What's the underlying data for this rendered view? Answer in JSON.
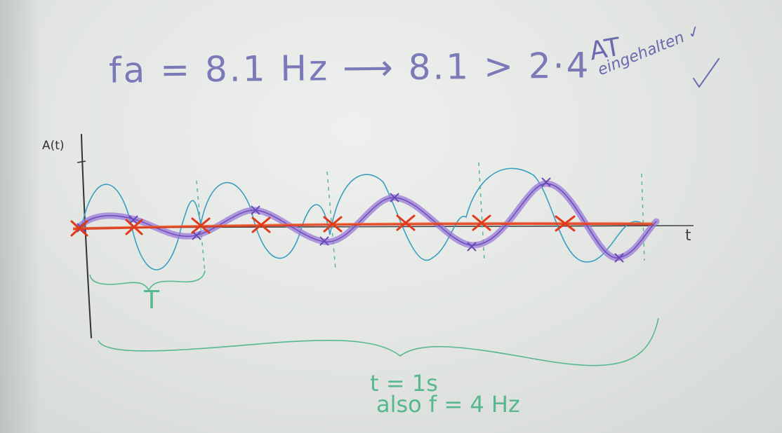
{
  "formula": "fa = 8.1 Hz ⟶ 8.1 > 2·4",
  "note_top": "AT",
  "note_bottom": "eingehalten ✓",
  "y_axis_label": "A(t)",
  "x_axis_label": "t",
  "period_label": "T",
  "duration_label": "t = 1s",
  "frequency_label": "also f = 4 Hz",
  "colors": {
    "board": "#e6e9e6",
    "formula_ink": "#7a7ab8",
    "signal_ink": "#3a9ec0",
    "sampled_ink": "#9a7ad8",
    "sample_ink": "#e03a1a",
    "annotation_ink": "#55b890",
    "axis_ink": "#333333"
  }
}
